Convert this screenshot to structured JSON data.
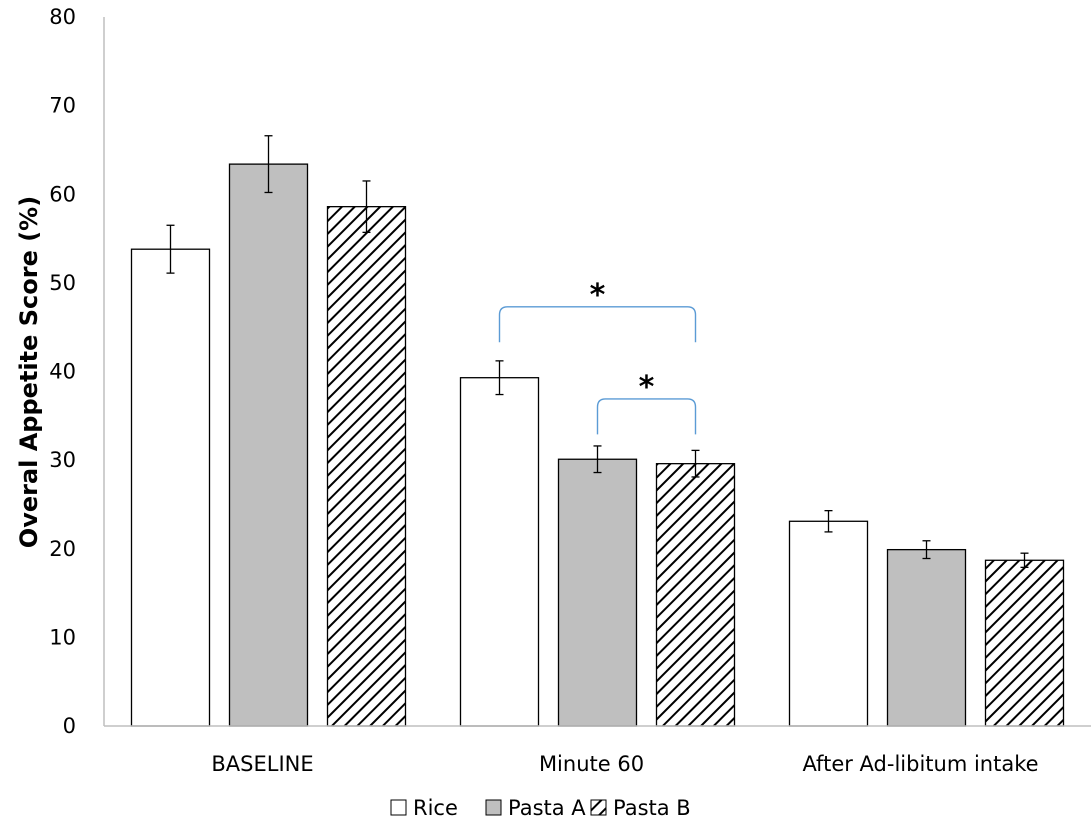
{
  "chart_data": {
    "type": "bar",
    "title": "",
    "xlabel": "",
    "ylabel": "Overal Appetite Score (%)",
    "ylim": [
      0,
      80
    ],
    "yticks": [
      0,
      10,
      20,
      30,
      40,
      50,
      60,
      70,
      80
    ],
    "grid": false,
    "legend_position": "bottom",
    "categories": [
      "BASELINE",
      "Minute 60",
      "After Ad-libitum intake"
    ],
    "series": [
      {
        "name": "Rice",
        "values": [
          53.8,
          39.3,
          23.1
        ],
        "errors": [
          2.7,
          1.9,
          1.2
        ],
        "fill": "#ffffff",
        "pattern": "none"
      },
      {
        "name": "Pasta A",
        "values": [
          63.4,
          30.1,
          19.9
        ],
        "errors": [
          3.2,
          1.5,
          1.0
        ],
        "fill": "#bfbfbf",
        "pattern": "none"
      },
      {
        "name": "Pasta B",
        "values": [
          58.6,
          29.6,
          18.7
        ],
        "errors": [
          2.9,
          1.5,
          0.8
        ],
        "fill": "#ffffff",
        "pattern": "diagonal-stripes"
      }
    ],
    "annotations": [
      {
        "text": "*",
        "category": "Minute 60",
        "from_series": "Rice",
        "to_series": "Pasta B",
        "level": 47.3,
        "leg_bottom": 43.3
      },
      {
        "text": "*",
        "category": "Minute 60",
        "from_series": "Pasta A",
        "to_series": "Pasta B",
        "level": 36.9,
        "leg_bottom": 32.9
      }
    ],
    "colors": {
      "axis": "#bfbfbf",
      "bar_stroke": "#000000",
      "bracket": "#5b9bd5",
      "hatch": "#000000"
    }
  }
}
